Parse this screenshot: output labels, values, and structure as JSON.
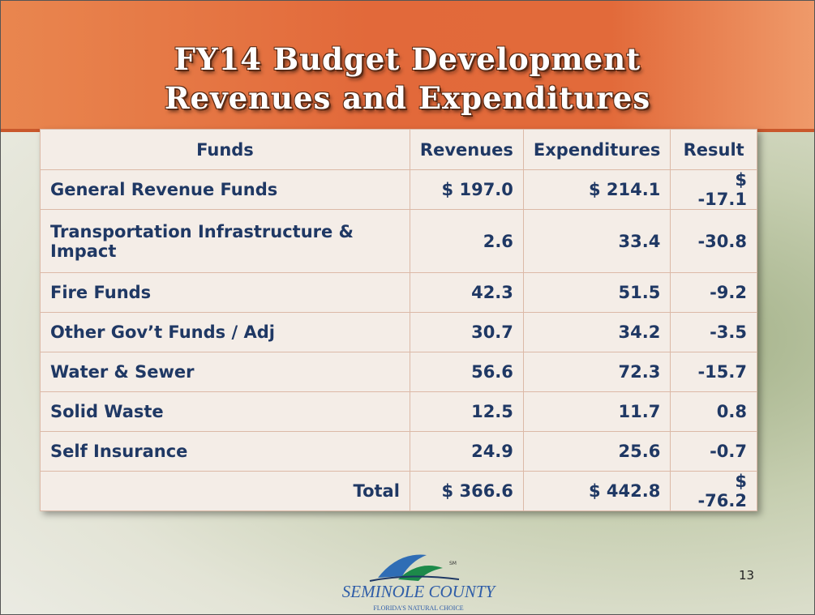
{
  "header": {
    "title_line_1": "FY14 Budget Development",
    "title_line_2": "Revenues and Expenditures"
  },
  "table": {
    "columns": [
      "Funds",
      "Revenues",
      "Expenditures",
      "Result"
    ],
    "rows": [
      [
        "General Revenue Funds",
        "$ 197.0",
        "$ 214.1",
        "$ -17.1"
      ],
      [
        "Transportation Infrastructure & Impact",
        "2.6",
        "33.4",
        "-30.8"
      ],
      [
        "Fire Funds",
        "42.3",
        "51.5",
        "-9.2"
      ],
      [
        "Other Gov’t Funds / Adj",
        "30.7",
        "34.2",
        "-3.5"
      ],
      [
        "Water & Sewer",
        "56.6",
        "72.3",
        "-15.7"
      ],
      [
        "Solid Waste",
        "12.5",
        "11.7",
        "0.8"
      ],
      [
        "Self Insurance",
        "24.9",
        "25.6",
        "-0.7"
      ],
      [
        "Total",
        "$ 366.6",
        "$ 442.8",
        "$ -76.2"
      ]
    ]
  },
  "footer": {
    "logo_name": "SEMINOLE COUNTY",
    "logo_tagline": "FLORIDA'S NATURAL CHOICE",
    "logo_mark": "SM",
    "page_number": "13"
  }
}
